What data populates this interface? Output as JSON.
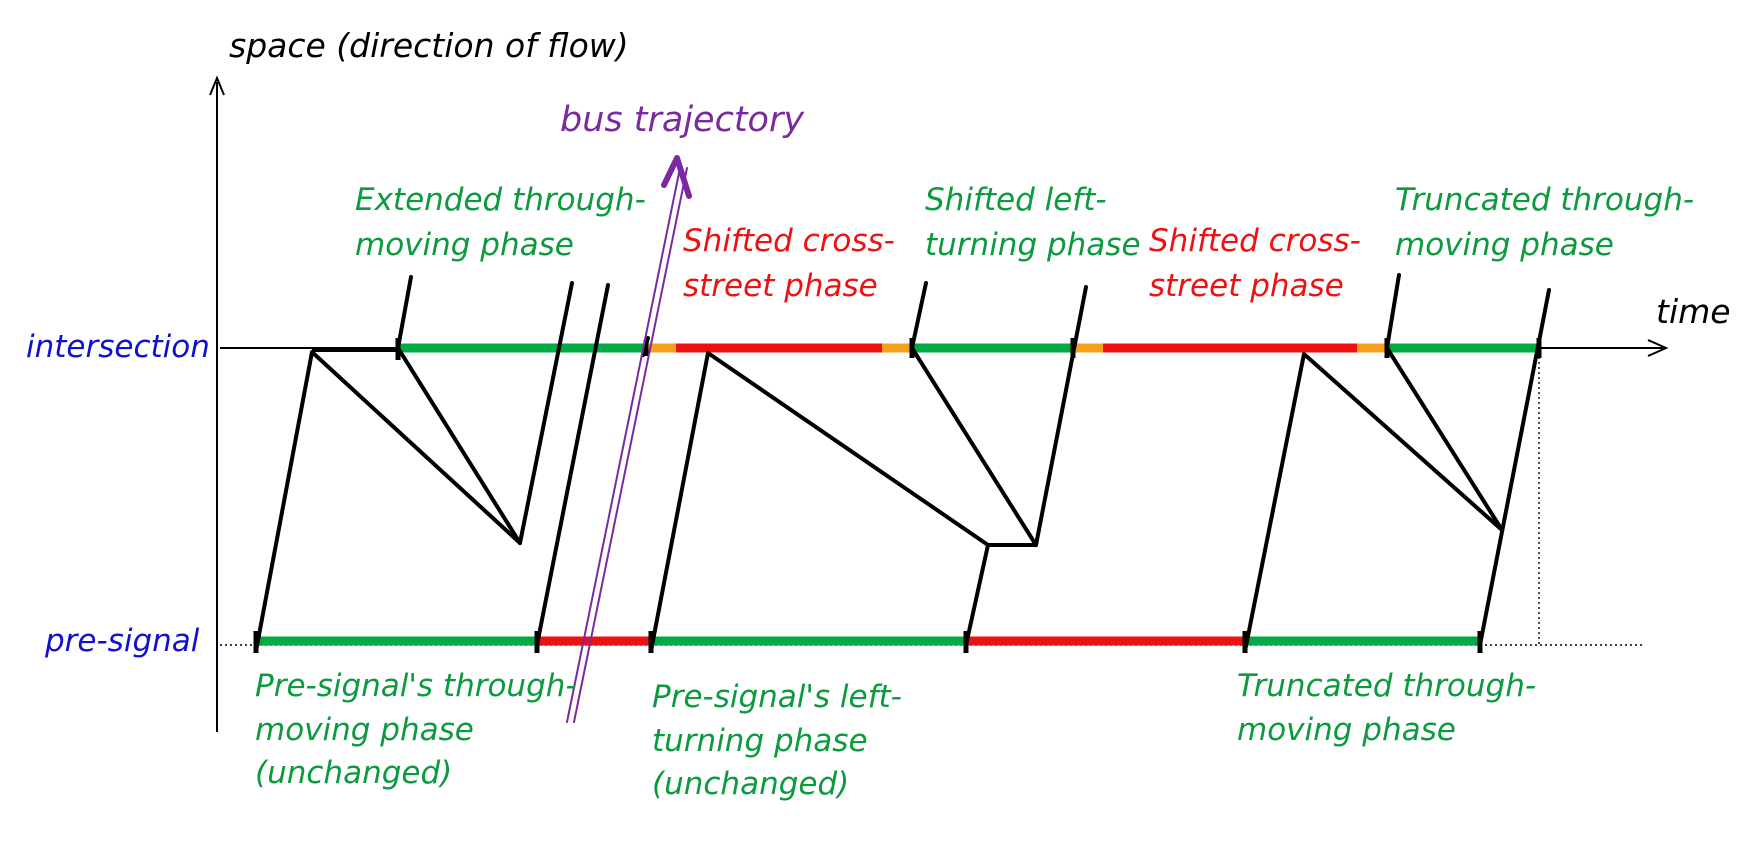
{
  "axes": {
    "y_title": "space (direction of flow)",
    "x_title": "time",
    "intersection_label": "intersection",
    "presignal_label": "pre-signal"
  },
  "bus": {
    "label": "bus trajectory",
    "color": "#7a2a9e"
  },
  "colors": {
    "green_phase": "#00aa44",
    "red_phase": "#ee1111",
    "yellow_phase": "#f5a01a",
    "trajectory": "#000000",
    "green_text": "#0b9a3e",
    "red_text": "#ee1111",
    "row_label": "#1010d0"
  },
  "annotations": {
    "extended_through": {
      "line1": "Extended through-",
      "line2": "moving phase"
    },
    "shifted_cross_1": {
      "line1": "Shifted cross-",
      "line2": "street phase"
    },
    "shifted_left": {
      "line1": "Shifted left-",
      "line2": "turning phase"
    },
    "shifted_cross_2": {
      "line1": "Shifted cross-",
      "line2": "street phase"
    },
    "truncated_through_top": {
      "line1": "Truncated through-",
      "line2": "moving phase"
    },
    "presignal_through": {
      "line1": "Pre-signal's through-",
      "line2": "moving phase",
      "line3": "(unchanged)"
    },
    "presignal_left": {
      "line1": "Pre-signal's left-",
      "line2": "turning phase",
      "line3": "(unchanged)"
    },
    "truncated_through_bottom": {
      "line1": "Truncated through-",
      "line2": "moving phase"
    }
  }
}
